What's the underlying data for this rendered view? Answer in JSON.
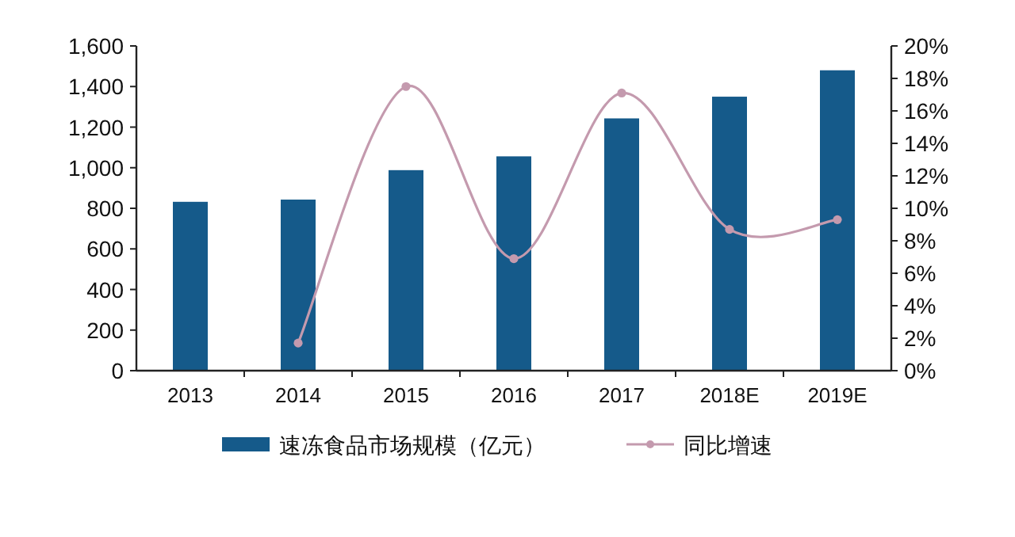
{
  "chart_data": {
    "type": "bar",
    "categories": [
      "2013",
      "2014",
      "2015",
      "2016",
      "2017",
      "2018E",
      "2019E"
    ],
    "series": [
      {
        "name": "速冻食品市场规模（亿元）",
        "color": "#155a8a",
        "values": [
          832,
          843,
          988,
          1056,
          1243,
          1350,
          1480
        ]
      },
      {
        "name": "同比增速",
        "type": "line",
        "axis": "y2",
        "color": "#c49aae",
        "values": [
          null,
          1.7,
          17.5,
          6.9,
          17.1,
          8.7,
          9.3
        ]
      }
    ],
    "ylim": [
      0,
      1600
    ],
    "yticks": [
      {
        "value": 0,
        "label": "0"
      },
      {
        "value": 200,
        "label": "200"
      },
      {
        "value": 400,
        "label": "400"
      },
      {
        "value": 600,
        "label": "600"
      },
      {
        "value": 800,
        "label": "800"
      },
      {
        "value": 1000,
        "label": "1,000"
      },
      {
        "value": 1200,
        "label": "1,200"
      },
      {
        "value": 1400,
        "label": "1,400"
      },
      {
        "value": 1600,
        "label": "1,600"
      }
    ],
    "y2lim": [
      0,
      20
    ],
    "y2ticks": [
      {
        "value": 0,
        "label": "0%"
      },
      {
        "value": 2,
        "label": "2%"
      },
      {
        "value": 4,
        "label": "4%"
      },
      {
        "value": 6,
        "label": "6%"
      },
      {
        "value": 8,
        "label": "8%"
      },
      {
        "value": 10,
        "label": "10%"
      },
      {
        "value": 12,
        "label": "12%"
      },
      {
        "value": 14,
        "label": "14%"
      },
      {
        "value": 16,
        "label": "16%"
      },
      {
        "value": 18,
        "label": "18%"
      },
      {
        "value": 20,
        "label": "20%"
      }
    ],
    "marker": "circle",
    "legend": "bottom"
  }
}
